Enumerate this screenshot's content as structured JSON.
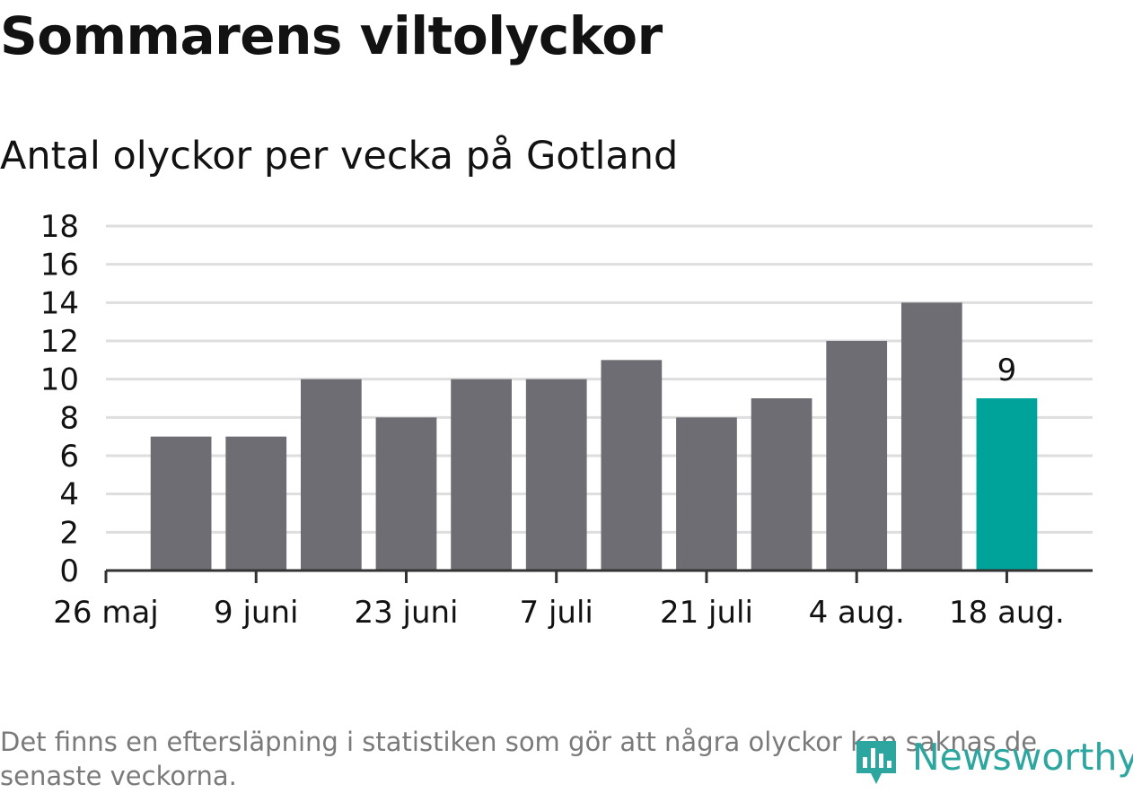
{
  "title": "Sommarens viltolyckor",
  "subtitle": "Antal olyckor per vecka på Gotland",
  "footnote": "Det finns en eftersläpning i statistiken som gör att några olyckor kan saknas de senaste veckorna.",
  "logo_text": "Newsworthy",
  "colors": {
    "bar": "#6e6d73",
    "highlight": "#00a39a",
    "grid": "#dedede",
    "axis": "#333333",
    "text": "#121212",
    "footnote": "#7a7a7a",
    "logo": "#2ea6a0"
  },
  "chart_data": {
    "type": "bar",
    "x": [
      "2019-06-02",
      "2019-06-09",
      "2019-06-16",
      "2019-06-23",
      "2019-06-30",
      "2019-07-07",
      "2019-07-14",
      "2019-07-21",
      "2019-07-28",
      "2019-08-04",
      "2019-08-11",
      "2019-08-18"
    ],
    "values": [
      7,
      7,
      10,
      8,
      10,
      10,
      11,
      8,
      9,
      12,
      14,
      9
    ],
    "highlight_index": 11,
    "highlight_label": "9",
    "x_tick_labels": [
      "26 maj",
      "9 juni",
      "23 juni",
      "7 juli",
      "21 juli",
      "4 aug.",
      "18 aug."
    ],
    "x_ticks": [
      "2019-05-26",
      "2019-06-09",
      "2019-06-23",
      "2019-07-07",
      "2019-07-21",
      "2019-08-04",
      "2019-08-18"
    ],
    "y_ticks": [
      0,
      2,
      4,
      6,
      8,
      10,
      12,
      14,
      16,
      18
    ],
    "ylim": [
      0,
      18
    ],
    "xlim": [
      "2019-05-26",
      "2019-08-26"
    ],
    "grid": true,
    "xlabel": "",
    "ylabel": ""
  }
}
